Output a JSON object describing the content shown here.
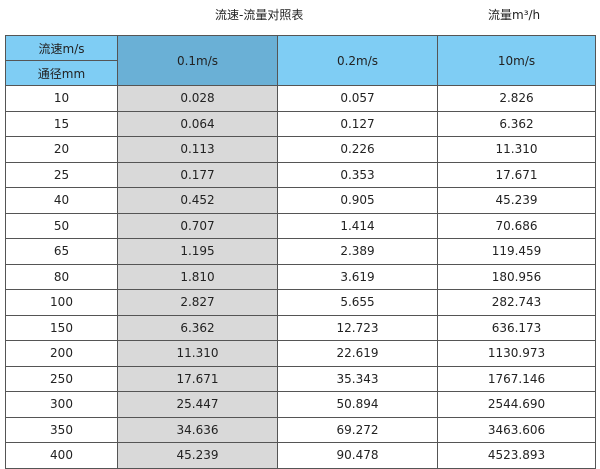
{
  "title": "流速-流量对照表",
  "unit": "流量m³/h",
  "header": {
    "velocity_label": "流速m/s",
    "diameter_label": "通径mm",
    "columns": [
      "0.1m/s",
      "0.2m/s",
      "10m/s"
    ]
  },
  "rows": [
    [
      "10",
      "0.028",
      "0.057",
      "2.826"
    ],
    [
      "15",
      "0.064",
      "0.127",
      "6.362"
    ],
    [
      "20",
      "0.113",
      "0.226",
      "11.310"
    ],
    [
      "25",
      "0.177",
      "0.353",
      "17.671"
    ],
    [
      "40",
      "0.452",
      "0.905",
      "45.239"
    ],
    [
      "50",
      "0.707",
      "1.414",
      "70.686"
    ],
    [
      "65",
      "1.195",
      "2.389",
      "119.459"
    ],
    [
      "80",
      "1.810",
      "3.619",
      "180.956"
    ],
    [
      "100",
      "2.827",
      "5.655",
      "282.743"
    ],
    [
      "150",
      "6.362",
      "12.723",
      "636.173"
    ],
    [
      "200",
      "11.310",
      "22.619",
      "1130.973"
    ],
    [
      "250",
      "17.671",
      "35.343",
      "1767.146"
    ],
    [
      "300",
      "25.447",
      "50.894",
      "2544.690"
    ],
    [
      "350",
      "34.636",
      "69.272",
      "3463.606"
    ],
    [
      "400",
      "45.239",
      "90.478",
      "4523.893"
    ]
  ],
  "colors": {
    "header": "#7fcdf4",
    "header_selected": "#6ab0d6",
    "highlight_column": "#d9d9d9"
  }
}
